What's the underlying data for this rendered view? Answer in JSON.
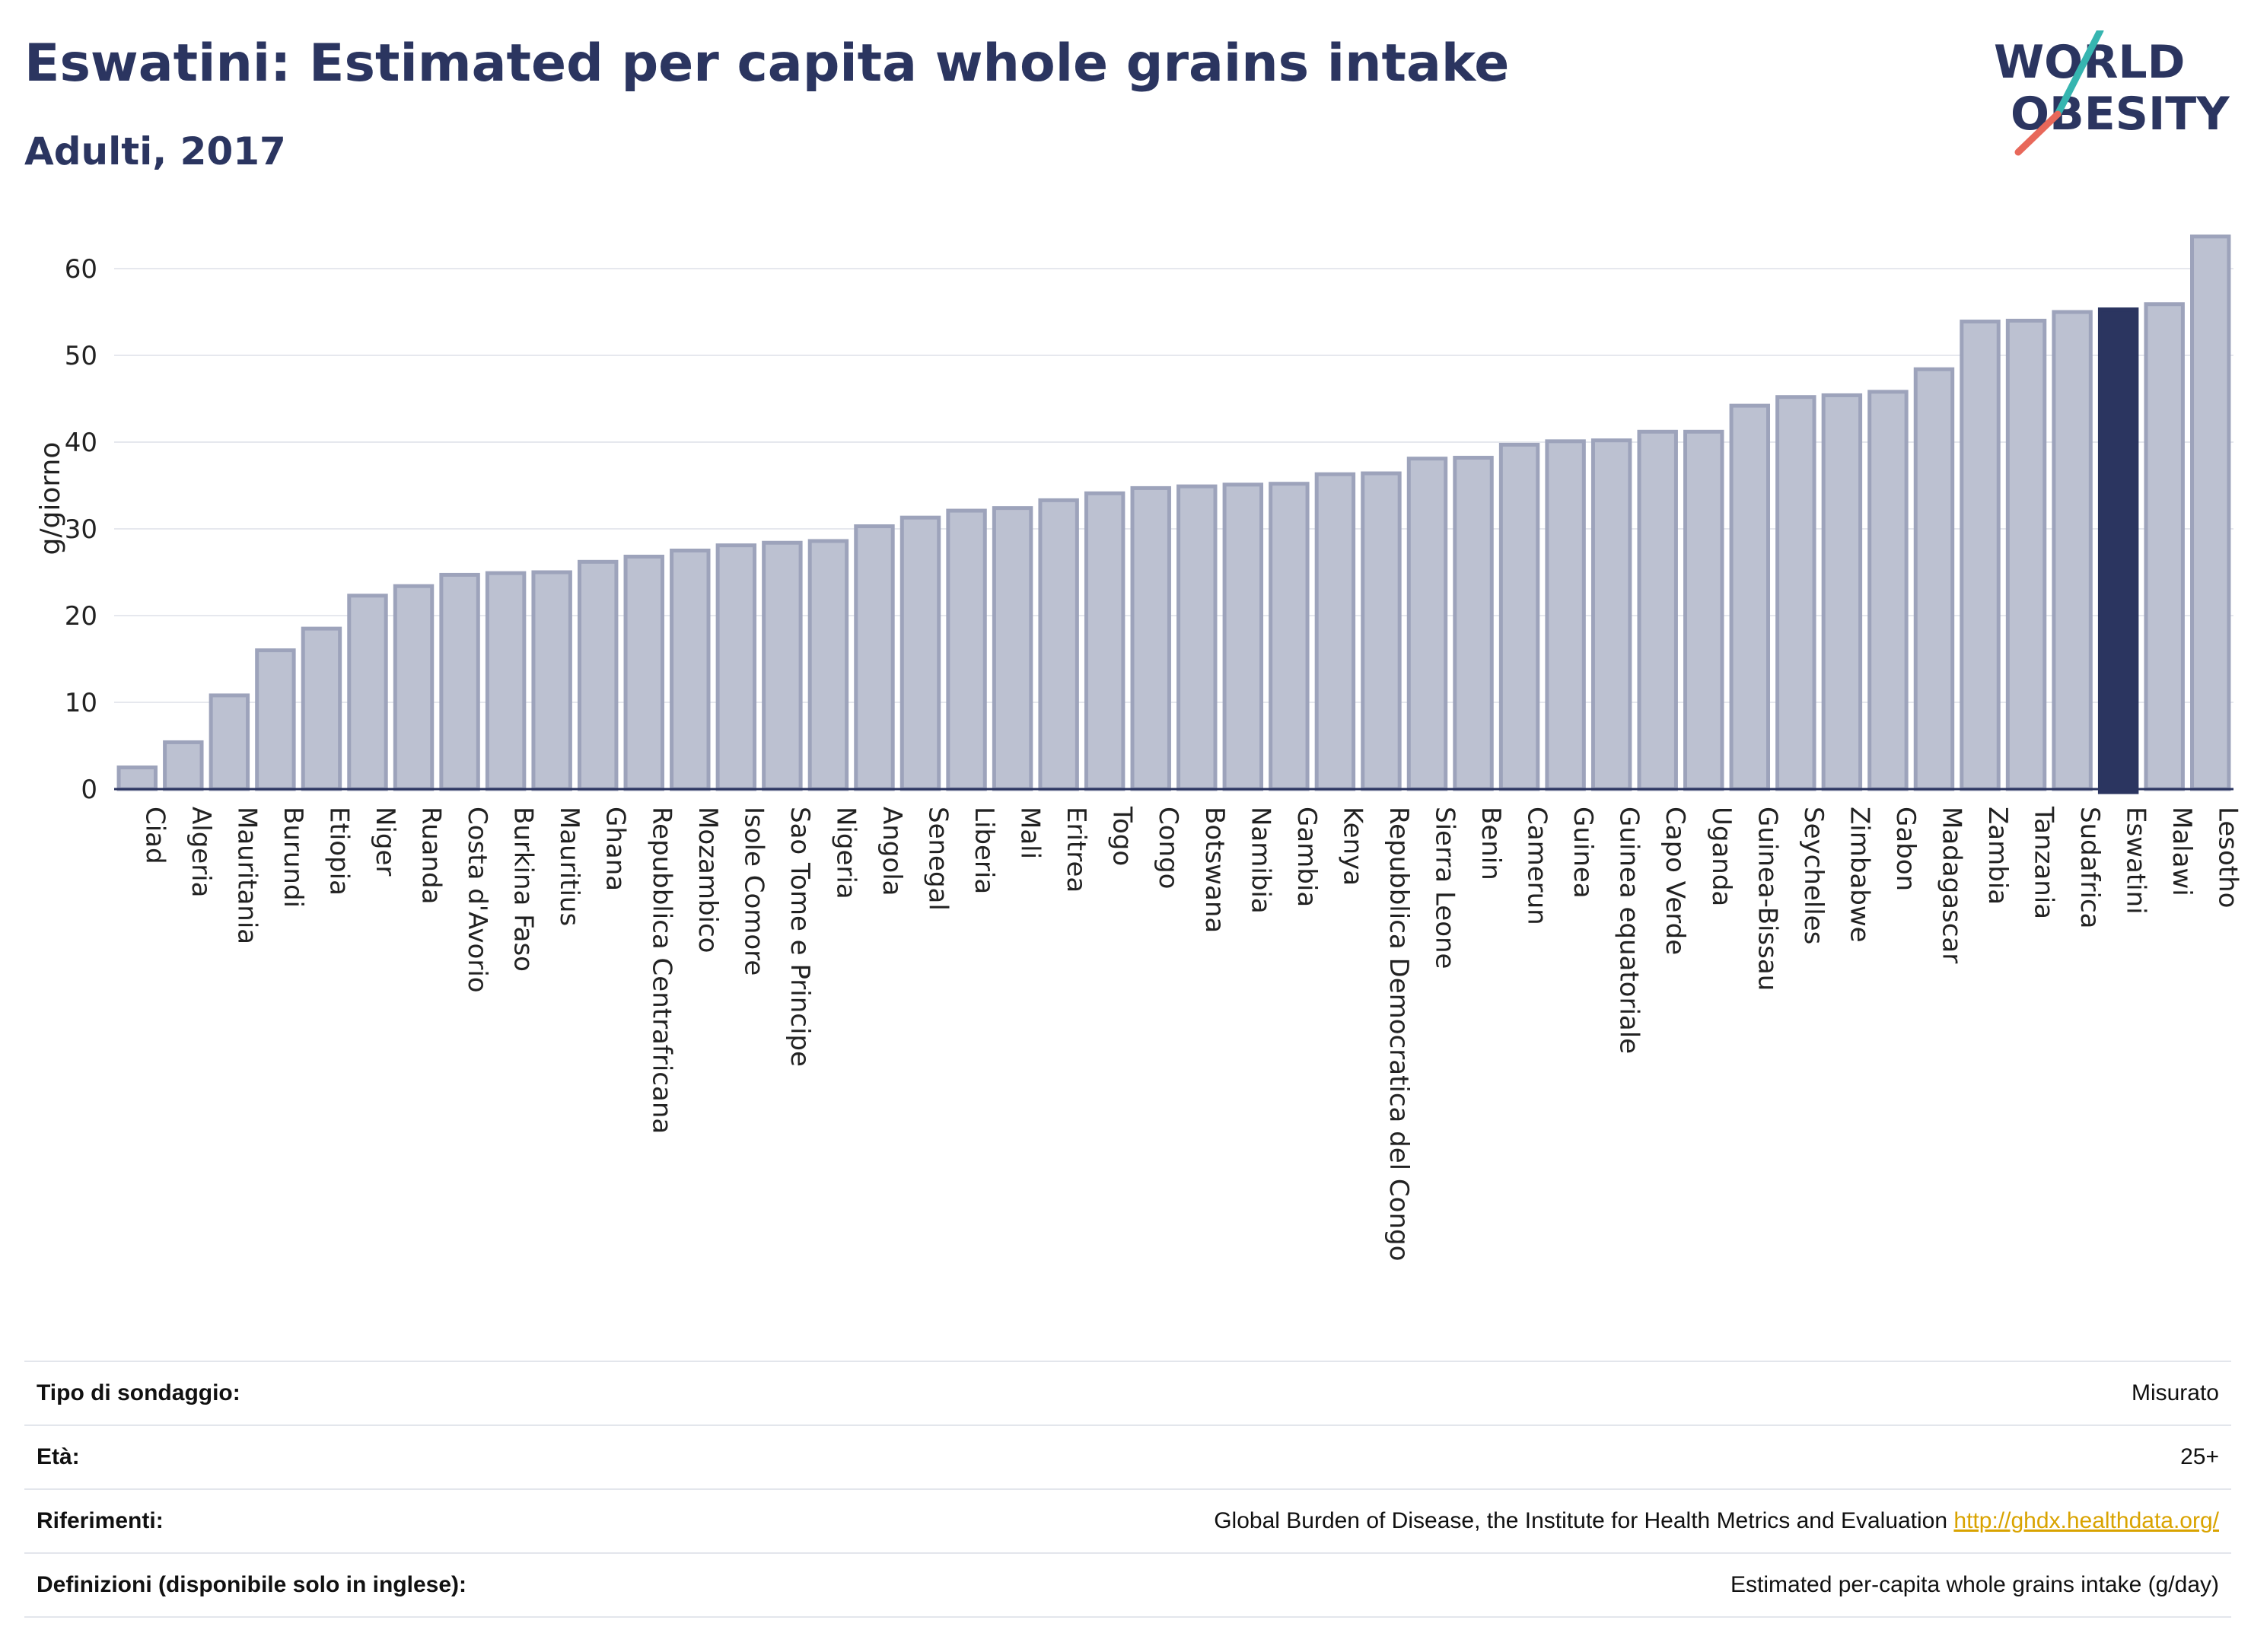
{
  "header": {
    "title": "Eswatini: Estimated per capita whole grains intake",
    "subtitle": "Adulti, 2017"
  },
  "logo": {
    "line1": "WORLD",
    "line2": "OBESITY"
  },
  "colors": {
    "title": "#2b3560",
    "bar": "#bcc1d1",
    "bar_border": "#9da3bb",
    "highlight": "#2b3560",
    "grid": "#e6e8ee",
    "logo_teal": "#36b5b0",
    "logo_red": "#e8685a",
    "link": "#d9a300"
  },
  "chart_data": {
    "type": "bar",
    "ylabel": "g/giorno",
    "xlabel": "",
    "ylim": [
      0,
      65
    ],
    "yticks": [
      0,
      10,
      20,
      30,
      40,
      50,
      60
    ],
    "grid": true,
    "highlight": "Eswatini",
    "categories": [
      "Ciad",
      "Algeria",
      "Mauritania",
      "Burundi",
      "Etiopia",
      "Niger",
      "Ruanda",
      "Costa d'Avorio",
      "Burkina Faso",
      "Mauritius",
      "Ghana",
      "Repubblica Centrafricana",
      "Mozambico",
      "Isole Comore",
      "Sao Tome e Principe",
      "Nigeria",
      "Angola",
      "Senegal",
      "Liberia",
      "Mali",
      "Eritrea",
      "Togo",
      "Congo",
      "Botswana",
      "Namibia",
      "Gambia",
      "Kenya",
      "Repubblica Democratica del Congo",
      "Sierra Leone",
      "Benin",
      "Camerun",
      "Guinea",
      "Guinea equatoriale",
      "Capo Verde",
      "Uganda",
      "Guinea-Bissau",
      "Seychelles",
      "Zimbabwe",
      "Gabon",
      "Madagascar",
      "Zambia",
      "Tanzania",
      "Sudafrica",
      "Eswatini",
      "Malawi",
      "Lesotho"
    ],
    "values": [
      2.5,
      5.4,
      10.8,
      16.0,
      18.5,
      22.3,
      23.4,
      24.7,
      24.9,
      25.0,
      26.2,
      26.8,
      27.5,
      28.1,
      28.4,
      28.6,
      30.3,
      31.3,
      32.1,
      32.4,
      33.3,
      34.1,
      34.7,
      34.9,
      35.1,
      35.2,
      36.3,
      36.4,
      38.1,
      38.2,
      39.7,
      40.1,
      40.2,
      41.2,
      41.2,
      44.2,
      45.2,
      45.4,
      45.8,
      48.4,
      53.9,
      54.0,
      55.0,
      55.3,
      55.9,
      63.7
    ]
  },
  "info": {
    "rows": [
      {
        "label": "Tipo di sondaggio:",
        "value": "Misurato"
      },
      {
        "label": "Età:",
        "value": "25+"
      },
      {
        "label": "Riferimenti:",
        "value": "Global Burden of Disease, the Institute for Health Metrics and Evaluation",
        "link": "http://ghdx.healthdata.org/"
      },
      {
        "label": "Definizioni (disponibile solo in inglese):",
        "value": "Estimated per-capita whole grains intake (g/day)"
      }
    ]
  }
}
